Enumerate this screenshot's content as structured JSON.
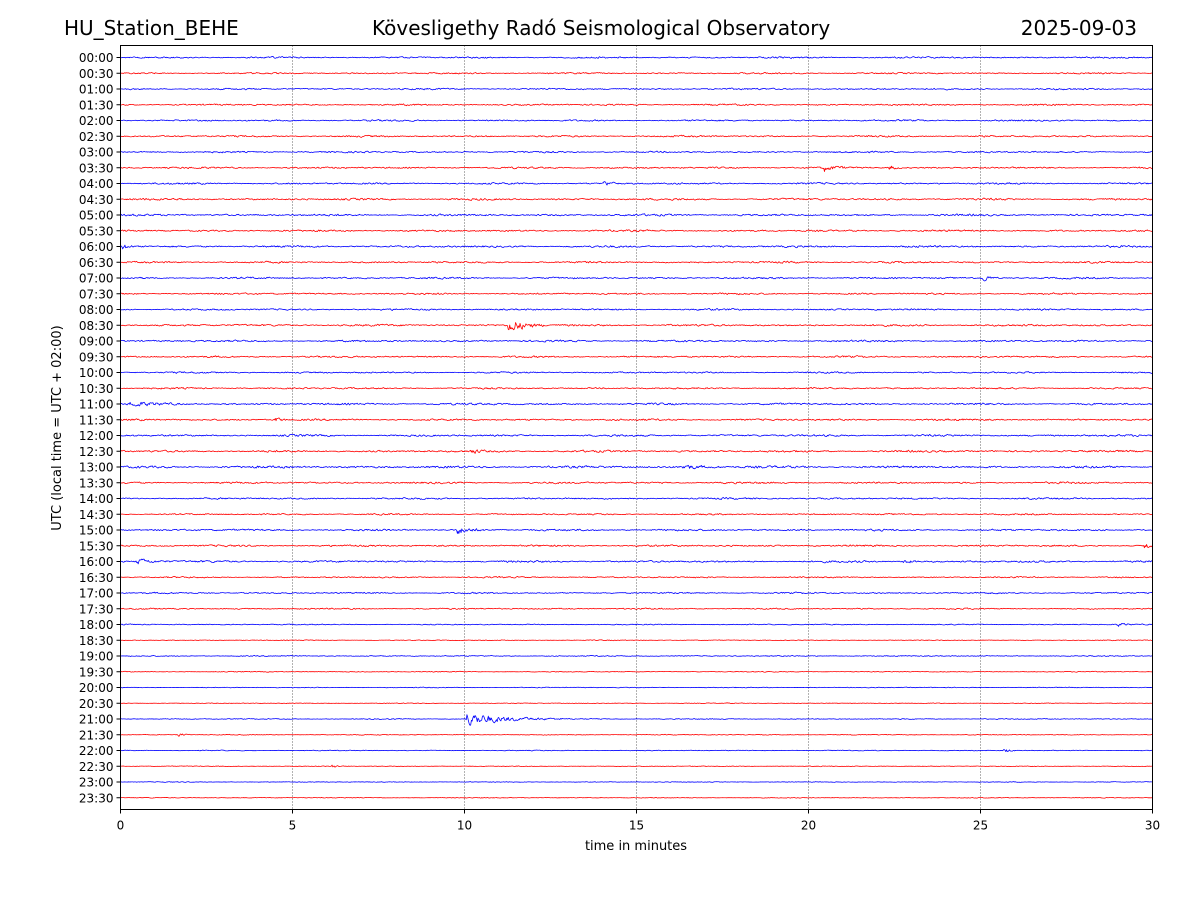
{
  "header": {
    "station": "HU_Station_BEHE",
    "title": "Kövesligethy Radó Seismological Observatory",
    "date": "2025-09-03"
  },
  "chart_data": {
    "type": "line",
    "xlabel": "time in minutes",
    "ylabel": "UTC (local time = UTC + 02:00)",
    "xlim": [
      0,
      30
    ],
    "xticks": [
      0,
      5,
      10,
      15,
      20,
      25,
      30
    ],
    "xgrid": "vertical dotted lines at each x tick",
    "row_labels": [
      "00:00",
      "00:30",
      "01:00",
      "01:30",
      "02:00",
      "02:30",
      "03:00",
      "03:30",
      "04:00",
      "04:30",
      "05:00",
      "05:30",
      "06:00",
      "06:30",
      "07:00",
      "07:30",
      "08:00",
      "08:30",
      "09:00",
      "09:30",
      "10:00",
      "10:30",
      "11:00",
      "11:30",
      "12:00",
      "12:30",
      "13:00",
      "13:30",
      "14:00",
      "14:30",
      "15:00",
      "15:30",
      "16:00",
      "16:30",
      "17:00",
      "17:30",
      "18:00",
      "18:30",
      "19:00",
      "19:30",
      "20:00",
      "20:30",
      "21:00",
      "21:30",
      "22:00",
      "22:30",
      "23:00",
      "23:30"
    ],
    "series_colors": [
      "#0000ff",
      "#ff0000"
    ],
    "color_pattern": "rows alternate blue (:00) and red (:30)",
    "noise_levels": [
      0.7,
      0.65,
      0.7,
      0.7,
      0.7,
      0.75,
      0.7,
      0.75,
      0.75,
      0.85,
      0.85,
      0.8,
      0.85,
      0.8,
      0.75,
      0.75,
      0.75,
      0.85,
      0.8,
      0.75,
      0.7,
      0.7,
      0.85,
      0.8,
      0.85,
      0.9,
      1.0,
      0.8,
      0.75,
      0.65,
      0.8,
      0.8,
      0.85,
      0.6,
      0.65,
      0.6,
      0.45,
      0.35,
      0.45,
      0.35,
      0.35,
      0.3,
      0.4,
      0.35,
      0.35,
      0.3,
      0.3,
      0.3
    ],
    "events": [
      {
        "row": "03:30",
        "minute": 20.5,
        "amplitude": 1.2,
        "duration_min": 0.6
      },
      {
        "row": "03:30",
        "minute": 22.4,
        "amplitude": 1.0,
        "duration_min": 0.3
      },
      {
        "row": "04:00",
        "minute": 14.1,
        "amplitude": 0.9,
        "duration_min": 0.4
      },
      {
        "row": "06:00",
        "minute": 0.1,
        "amplitude": 1.1,
        "duration_min": 0.3
      },
      {
        "row": "07:00",
        "minute": 25.1,
        "amplitude": 1.3,
        "duration_min": 0.4
      },
      {
        "row": "08:30",
        "minute": 11.3,
        "amplitude": 3.2,
        "duration_min": 1.0
      },
      {
        "row": "11:00",
        "minute": 0.3,
        "amplitude": 0.9,
        "duration_min": 1.5
      },
      {
        "row": "11:30",
        "minute": 4.5,
        "amplitude": 1.0,
        "duration_min": 0.4
      },
      {
        "row": "12:30",
        "minute": 10.2,
        "amplitude": 1.0,
        "duration_min": 0.4
      },
      {
        "row": "13:00",
        "minute": 16.4,
        "amplitude": 1.0,
        "duration_min": 1.2
      },
      {
        "row": "15:00",
        "minute": 9.8,
        "amplitude": 1.9,
        "duration_min": 0.8
      },
      {
        "row": "15:30",
        "minute": 29.8,
        "amplitude": 1.2,
        "duration_min": 0.5
      },
      {
        "row": "16:00",
        "minute": 0.5,
        "amplitude": 1.2,
        "duration_min": 1.0
      },
      {
        "row": "16:00",
        "minute": 22.8,
        "amplitude": 0.9,
        "duration_min": 0.4
      },
      {
        "row": "18:00",
        "minute": 29.0,
        "amplitude": 0.8,
        "duration_min": 0.5
      },
      {
        "row": "21:00",
        "minute": 10.1,
        "amplitude": 2.8,
        "duration_min": 2.8
      },
      {
        "row": "21:30",
        "minute": 1.7,
        "amplitude": 0.8,
        "duration_min": 0.3
      },
      {
        "row": "22:00",
        "minute": 25.7,
        "amplitude": 1.0,
        "duration_min": 0.3
      },
      {
        "row": "22:30",
        "minute": 6.2,
        "amplitude": 0.8,
        "duration_min": 0.2
      }
    ]
  }
}
